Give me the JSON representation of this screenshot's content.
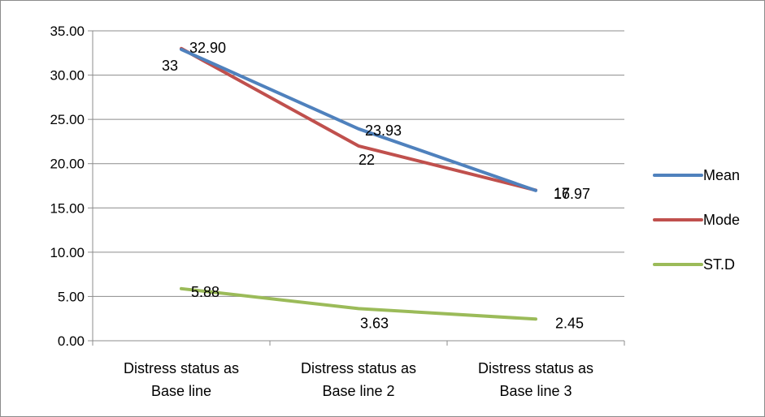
{
  "chart_data": {
    "type": "line",
    "categories": [
      [
        "Distress status as",
        "Base line"
      ],
      [
        "Distress status as",
        "Base line 2"
      ],
      [
        "Distress status as",
        "Base line 3"
      ]
    ],
    "series": [
      {
        "name": "Mean",
        "values": [
          32.9,
          23.93,
          16.97
        ],
        "labels": [
          "32.90",
          "23.93",
          "16.97"
        ],
        "color": "#4f81bd"
      },
      {
        "name": "Mode",
        "values": [
          33,
          22,
          17
        ],
        "labels": [
          "33",
          "22",
          "17"
        ],
        "color": "#c0504d"
      },
      {
        "name": "ST.D",
        "values": [
          5.88,
          3.63,
          2.45
        ],
        "labels": [
          "5.88",
          "3.63",
          "2.45"
        ],
        "color": "#9bbb59"
      }
    ],
    "ylim": [
      0,
      35
    ],
    "yticks": [
      "0.00",
      "5.00",
      "10.00",
      "15.00",
      "20.00",
      "25.00",
      "30.00",
      "35.00"
    ],
    "grid": true,
    "legend_position": "right"
  }
}
